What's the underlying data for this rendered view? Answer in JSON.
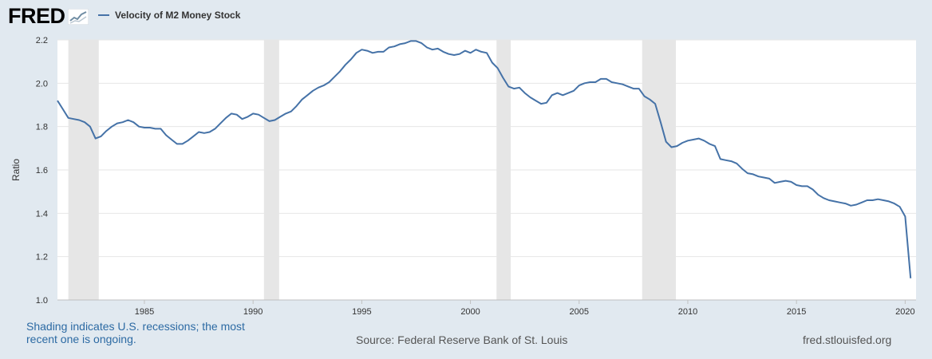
{
  "header": {
    "logo_text": "FRED",
    "logo_icon": "chart-trend-icon"
  },
  "chart_data": {
    "type": "line",
    "title": "Velocity of M2 Money Stock",
    "xlabel": "",
    "ylabel": "Ratio",
    "xlim": [
      1981.0,
      2020.5
    ],
    "ylim": [
      1.0,
      2.2
    ],
    "yticks": [
      1.0,
      1.2,
      1.4,
      1.6,
      1.8,
      2.0,
      2.2
    ],
    "ytick_labels": [
      "1.0",
      "1.2",
      "1.4",
      "1.6",
      "1.8",
      "2.0",
      "2.2"
    ],
    "xticks": [
      1985,
      1990,
      1995,
      2000,
      2005,
      2010,
      2015,
      2020
    ],
    "xtick_labels": [
      "1985",
      "1990",
      "1995",
      "2000",
      "2005",
      "2010",
      "2015",
      "2020"
    ],
    "grid": true,
    "legend": "top-left",
    "line_color": "#4572a7",
    "recession_color": "#e6e6e6",
    "recessions": [
      [
        1981.5,
        1982.9
      ],
      [
        1990.5,
        1991.2
      ],
      [
        2001.2,
        2001.85
      ],
      [
        2007.9,
        2009.45
      ]
    ],
    "series": [
      {
        "name": "Velocity of M2 Money Stock",
        "x": [
          1981.0,
          1981.25,
          1981.5,
          1981.75,
          1982.0,
          1982.25,
          1982.5,
          1982.75,
          1983.0,
          1983.25,
          1983.5,
          1983.75,
          1984.0,
          1984.25,
          1984.5,
          1984.75,
          1985.0,
          1985.25,
          1985.5,
          1985.75,
          1986.0,
          1986.25,
          1986.5,
          1986.75,
          1987.0,
          1987.25,
          1987.5,
          1987.75,
          1988.0,
          1988.25,
          1988.5,
          1988.75,
          1989.0,
          1989.25,
          1989.5,
          1989.75,
          1990.0,
          1990.25,
          1990.5,
          1990.75,
          1991.0,
          1991.25,
          1991.5,
          1991.75,
          1992.0,
          1992.25,
          1992.5,
          1992.75,
          1993.0,
          1993.25,
          1993.5,
          1993.75,
          1994.0,
          1994.25,
          1994.5,
          1994.75,
          1995.0,
          1995.25,
          1995.5,
          1995.75,
          1996.0,
          1996.25,
          1996.5,
          1996.75,
          1997.0,
          1997.25,
          1997.5,
          1997.75,
          1998.0,
          1998.25,
          1998.5,
          1998.75,
          1999.0,
          1999.25,
          1999.5,
          1999.75,
          2000.0,
          2000.25,
          2000.5,
          2000.75,
          2001.0,
          2001.25,
          2001.5,
          2001.75,
          2002.0,
          2002.25,
          2002.5,
          2002.75,
          2003.0,
          2003.25,
          2003.5,
          2003.75,
          2004.0,
          2004.25,
          2004.5,
          2004.75,
          2005.0,
          2005.25,
          2005.5,
          2005.75,
          2006.0,
          2006.25,
          2006.5,
          2006.75,
          2007.0,
          2007.25,
          2007.5,
          2007.75,
          2008.0,
          2008.25,
          2008.5,
          2008.75,
          2009.0,
          2009.25,
          2009.5,
          2009.75,
          2010.0,
          2010.25,
          2010.5,
          2010.75,
          2011.0,
          2011.25,
          2011.5,
          2011.75,
          2012.0,
          2012.25,
          2012.5,
          2012.75,
          2013.0,
          2013.25,
          2013.5,
          2013.75,
          2014.0,
          2014.25,
          2014.5,
          2014.75,
          2015.0,
          2015.25,
          2015.5,
          2015.75,
          2016.0,
          2016.25,
          2016.5,
          2016.75,
          2017.0,
          2017.25,
          2017.5,
          2017.75,
          2018.0,
          2018.25,
          2018.5,
          2018.75,
          2019.0,
          2019.25,
          2019.5,
          2019.75,
          2020.0,
          2020.25
        ],
        "values": [
          1.92,
          1.88,
          1.84,
          1.835,
          1.83,
          1.82,
          1.8,
          1.745,
          1.755,
          1.78,
          1.8,
          1.815,
          1.82,
          1.83,
          1.82,
          1.8,
          1.795,
          1.795,
          1.79,
          1.79,
          1.76,
          1.74,
          1.72,
          1.72,
          1.735,
          1.755,
          1.775,
          1.77,
          1.775,
          1.79,
          1.815,
          1.84,
          1.86,
          1.855,
          1.835,
          1.845,
          1.86,
          1.855,
          1.84,
          1.825,
          1.83,
          1.845,
          1.86,
          1.87,
          1.895,
          1.925,
          1.945,
          1.965,
          1.98,
          1.99,
          2.005,
          2.03,
          2.055,
          2.085,
          2.11,
          2.14,
          2.155,
          2.15,
          2.14,
          2.145,
          2.145,
          2.165,
          2.17,
          2.18,
          2.185,
          2.195,
          2.195,
          2.185,
          2.165,
          2.155,
          2.16,
          2.145,
          2.135,
          2.13,
          2.135,
          2.15,
          2.14,
          2.155,
          2.145,
          2.14,
          2.095,
          2.07,
          2.025,
          1.985,
          1.975,
          1.98,
          1.955,
          1.935,
          1.92,
          1.905,
          1.91,
          1.945,
          1.955,
          1.945,
          1.955,
          1.965,
          1.99,
          2.0,
          2.005,
          2.005,
          2.02,
          2.02,
          2.005,
          2.0,
          1.995,
          1.985,
          1.975,
          1.975,
          1.94,
          1.925,
          1.905,
          1.82,
          1.73,
          1.705,
          1.71,
          1.725,
          1.735,
          1.74,
          1.745,
          1.735,
          1.72,
          1.71,
          1.65,
          1.645,
          1.64,
          1.63,
          1.605,
          1.585,
          1.58,
          1.57,
          1.565,
          1.56,
          1.54,
          1.545,
          1.55,
          1.545,
          1.53,
          1.525,
          1.525,
          1.51,
          1.485,
          1.47,
          1.46,
          1.455,
          1.45,
          1.445,
          1.435,
          1.44,
          1.45,
          1.46,
          1.46,
          1.465,
          1.46,
          1.455,
          1.445,
          1.43,
          1.385,
          1.1
        ]
      }
    ]
  },
  "footer": {
    "note": "Shading indicates U.S. recessions; the most recent one is ongoing.",
    "source": "Source: Federal Reserve Bank of St. Louis",
    "url": "fred.stlouisfed.org"
  }
}
